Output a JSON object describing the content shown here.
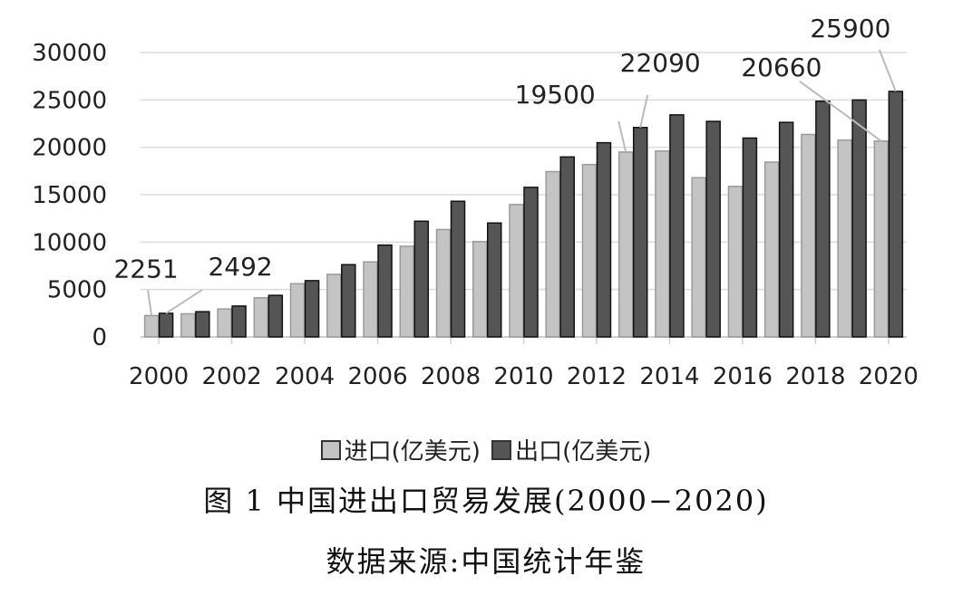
{
  "chart_data": {
    "type": "bar",
    "title": "图 1  中国进出口贸易发展(2000−2020)",
    "source": "数据来源:中国统计年鉴",
    "x": [
      2000,
      2001,
      2002,
      2003,
      2004,
      2005,
      2006,
      2007,
      2008,
      2009,
      2010,
      2011,
      2012,
      2013,
      2014,
      2015,
      2016,
      2017,
      2018,
      2019,
      2020
    ],
    "x_tick_labels": [
      "2000",
      "2002",
      "2004",
      "2006",
      "2008",
      "2010",
      "2012",
      "2014",
      "2016",
      "2018",
      "2020"
    ],
    "y_tick_labels": [
      "0",
      "5000",
      "10000",
      "15000",
      "20000",
      "25000",
      "30000"
    ],
    "ylim": [
      0,
      30000
    ],
    "grid": "horizontal",
    "legend_position": "bottom",
    "series": [
      {
        "name": "进口(亿美元)",
        "color": "#c4c4c4",
        "values": [
          2251,
          2436,
          2952,
          4128,
          5612,
          6600,
          7915,
          9561,
          11326,
          10059,
          13962,
          17435,
          18184,
          19500,
          19603,
          16796,
          15879,
          18438,
          21357,
          20771,
          20660
        ]
      },
      {
        "name": "出口(亿美元)",
        "color": "#555555",
        "values": [
          2492,
          2661,
          3256,
          4382,
          5933,
          7620,
          9689,
          12205,
          14307,
          12016,
          15778,
          18984,
          20487,
          22090,
          23423,
          22735,
          20976,
          22633,
          24867,
          24995,
          25900
        ]
      }
    ],
    "annotations": [
      {
        "text": "2251",
        "series": 0,
        "x": 2000
      },
      {
        "text": "2492",
        "series": 1,
        "x": 2000
      },
      {
        "text": "19500",
        "series": 0,
        "x": 2013
      },
      {
        "text": "22090",
        "series": 1,
        "x": 2013
      },
      {
        "text": "20660",
        "series": 0,
        "x": 2020
      },
      {
        "text": "25900",
        "series": 1,
        "x": 2020
      }
    ]
  }
}
